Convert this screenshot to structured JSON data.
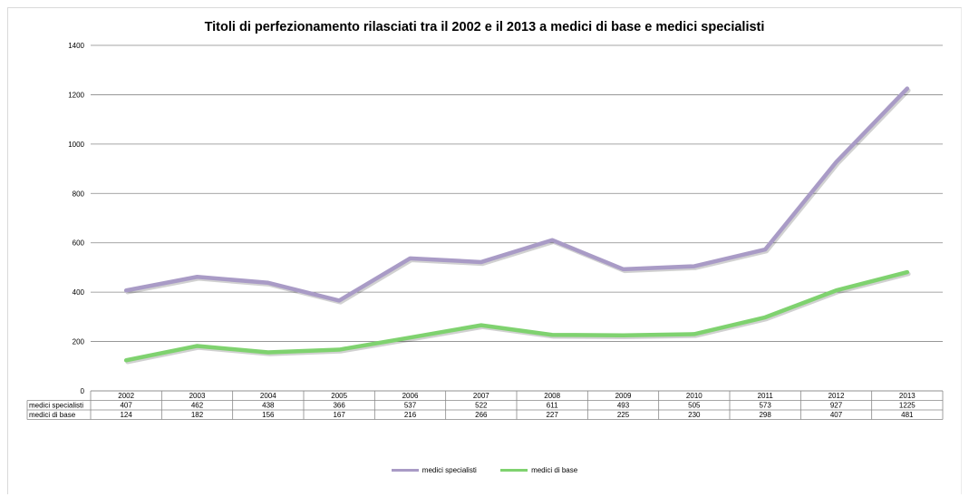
{
  "chart_data": {
    "type": "line",
    "title": "Titoli di perfezionamento rilasciati tra il 2002 e il 2013 a medici di base e medici specialisti",
    "categories": [
      "2002",
      "2003",
      "2004",
      "2005",
      "2006",
      "2007",
      "2008",
      "2009",
      "2010",
      "2011",
      "2012",
      "2013"
    ],
    "series": [
      {
        "name": "medici specialisti",
        "color": "#a99bc6",
        "values": [
          407,
          462,
          438,
          366,
          537,
          522,
          611,
          493,
          505,
          573,
          927,
          1225
        ]
      },
      {
        "name": "medici di base",
        "color": "#7fd26f",
        "values": [
          124,
          182,
          156,
          167,
          216,
          266,
          227,
          225,
          230,
          298,
          407,
          481
        ]
      }
    ],
    "ylim": [
      0,
      1400
    ],
    "yticks": [
      "0",
      "200",
      "400",
      "600",
      "800",
      "1000",
      "1200",
      "1400"
    ],
    "grid": true,
    "legend": "bottom",
    "data_table": true
  }
}
